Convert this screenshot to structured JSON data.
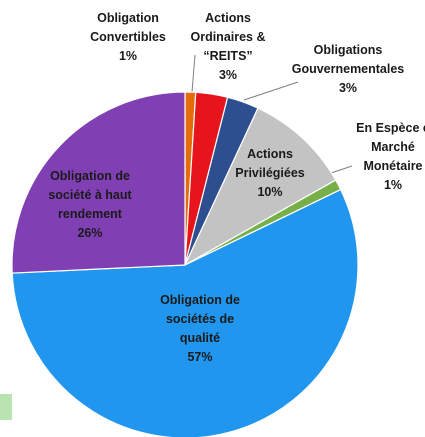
{
  "chart_data": {
    "type": "pie",
    "categories": [
      "Obligation\nConvertibles",
      "Actions\nOrdinaires &\n“REITS”",
      "Obligations\nGouvernementales",
      "Actions\nPrivilégiées",
      "En Espèce e\nMarché\nMonétaire",
      "Obligation de\nsociétés de\nqualité",
      "Obligation de\nsociété à haut\nrendement"
    ],
    "values": [
      1,
      3,
      3,
      10,
      1,
      57,
      26
    ],
    "value_labels": [
      "1%",
      "3%",
      "3%",
      "10%",
      "1%",
      "57%",
      "26%"
    ],
    "colors": [
      "#e46c0a",
      "#e8141c",
      "#2e4f8f",
      "#c3c3c3",
      "#77b048",
      "#2196ee",
      "#8040b4"
    ]
  }
}
